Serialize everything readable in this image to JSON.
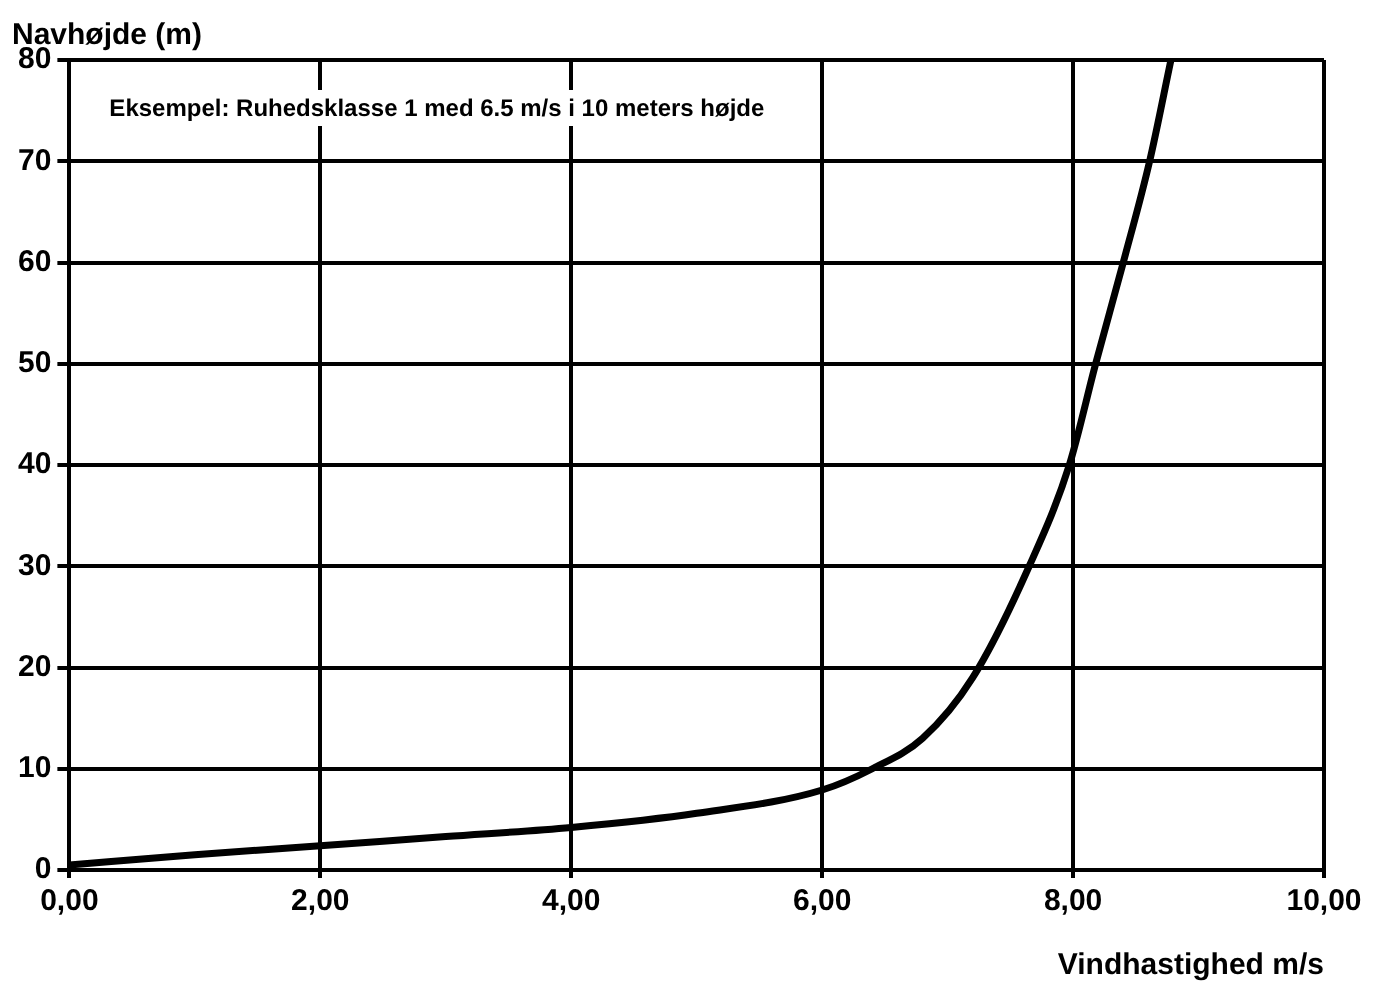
{
  "chart_data": {
    "type": "line",
    "xlabel": "Vindhastighed m/s",
    "ylabel": "Navhøjde (m)",
    "annotations": [
      "Eksempel: Ruhedsklasse 1 med 6.5 m/s i 10 meters højde"
    ],
    "x": [
      0,
      1,
      2,
      3,
      4,
      5,
      6,
      6.4,
      6.8,
      7.2,
      7.65,
      7.97,
      8.18,
      8.4,
      8.61,
      8.78
    ],
    "series": [
      {
        "color": "#000000",
        "values": [
          0.5,
          1.5,
          2.4,
          3.3,
          4.2,
          5.6,
          7.9,
          10,
          13,
          19,
          30,
          40,
          50,
          60,
          70,
          80
        ]
      }
    ],
    "xlim": [
      0,
      10
    ],
    "xticks": [
      {
        "value": 0,
        "label": "0,00"
      },
      {
        "value": 2,
        "label": "2,00"
      },
      {
        "value": 4,
        "label": "4,00"
      },
      {
        "value": 6,
        "label": "6,00"
      },
      {
        "value": 8,
        "label": "8,00"
      },
      {
        "value": 10,
        "label": "10,00"
      }
    ],
    "ylim": [
      0,
      80
    ],
    "yticks": [
      0,
      10,
      20,
      30,
      40,
      50,
      60,
      70,
      80
    ],
    "grid": true,
    "legend": false,
    "marker": "none",
    "line_style": "solid"
  }
}
